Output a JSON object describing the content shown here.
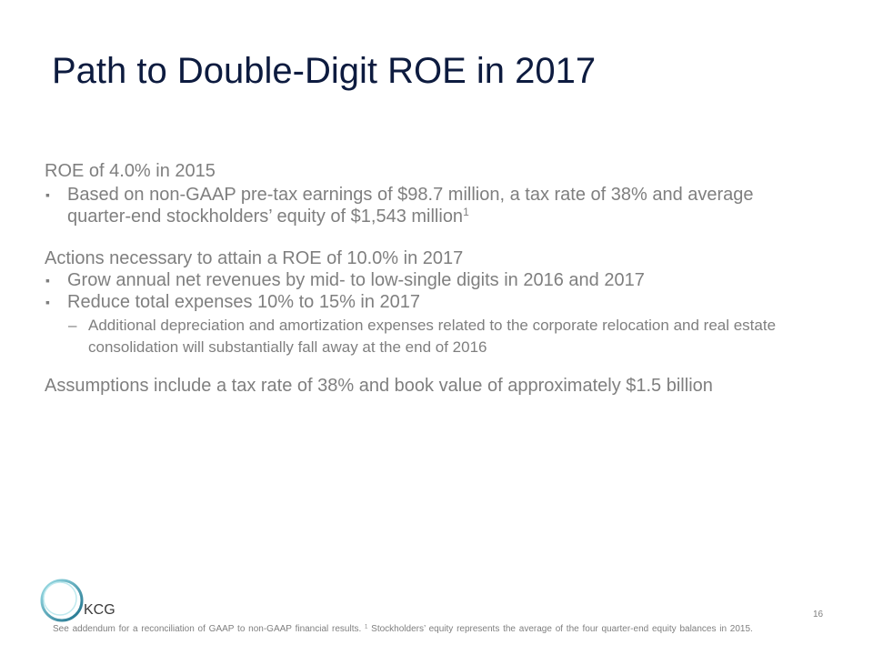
{
  "title": "Path to Double-Digit ROE in 2017",
  "sections": [
    {
      "heading": "ROE of 4.0% in 2015",
      "bullets": [
        {
          "text": "Based on non-GAAP pre-tax earnings of $98.7 million, a tax rate of 38% and average quarter-end stockholders’ equity of $1,543 million",
          "superscript": "1"
        }
      ]
    },
    {
      "heading": "Actions necessary to attain a ROE of 10.0% in 2017",
      "bullets": [
        {
          "text": "Grow annual net revenues by mid- to low-single digits in 2016 and 2017"
        },
        {
          "text": "Reduce total expenses 10% to 15% in 2017",
          "subbullets": [
            "Additional depreciation and amortization expenses related to the corporate relocation and real estate consolidation will substantially fall away at the end of 2016"
          ]
        }
      ]
    },
    {
      "heading": "Assumptions include a tax rate of 38% and book value of approximately $1.5 billion"
    }
  ],
  "footer": {
    "logo": "KCG",
    "page_number": "16",
    "footnote": {
      "text_before": "See addendum for a reconciliation of GAAP to non-GAAP financial results.",
      "superscript": "1",
      "text_after": "Stockholders’ equity represents the average of the four quarter-end equity balances in 2015."
    }
  }
}
